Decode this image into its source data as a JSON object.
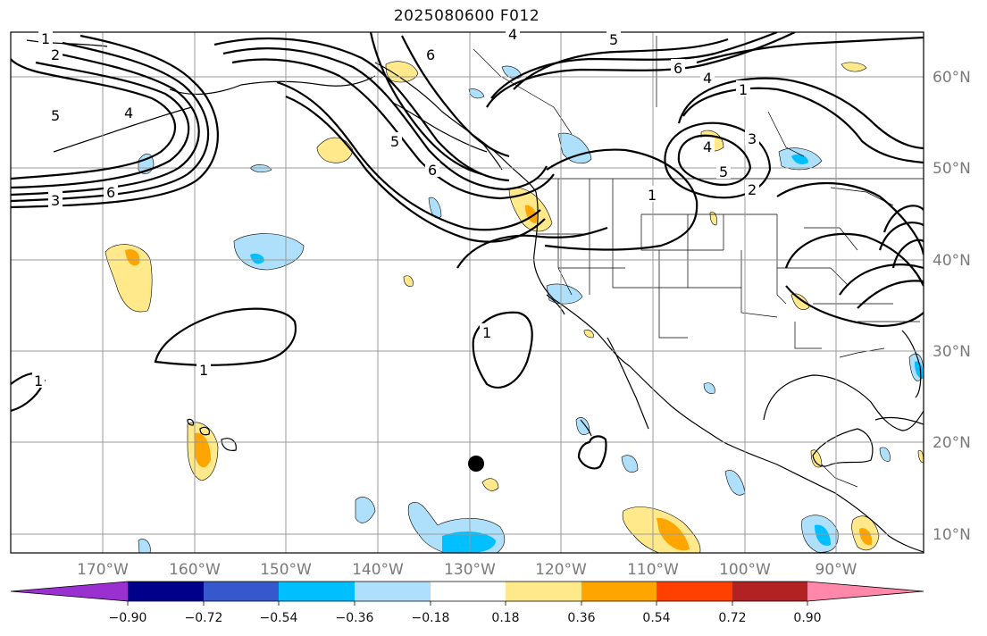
{
  "title": "2025080600 F012",
  "map": {
    "lon_labels": [
      "170°W",
      "160°W",
      "150°W",
      "140°W",
      "130°W",
      "120°W",
      "110°W",
      "100°W",
      "90°W"
    ],
    "lat_labels": [
      "60°N",
      "50°N",
      "40°N",
      "30°N",
      "20°N",
      "10°N"
    ],
    "contour_labels": [
      "1",
      "2",
      "5",
      "4",
      "3",
      "6",
      "6",
      "5",
      "6",
      "4",
      "1",
      "1",
      "1",
      "1",
      "4",
      "5",
      "2",
      "6",
      "5",
      "4",
      "3",
      "1"
    ],
    "marker": "black-dot",
    "fill_colors": {
      "neg_strong": "#00bfff",
      "neg_light": "#aee0fb",
      "pos_light": "#ffe98a",
      "pos_strong": "#ffa500"
    }
  },
  "colorbar": {
    "tick_labels": [
      "−0.90",
      "−0.72",
      "−0.54",
      "−0.36",
      "−0.18",
      "0.18",
      "0.36",
      "0.54",
      "0.72",
      "0.90"
    ],
    "colors": [
      "#9b30d0",
      "#00008b",
      "#3658cc",
      "#00bfff",
      "#aee0fb",
      "#ffffff",
      "#ffe98a",
      "#ffa500",
      "#ff4000",
      "#b22222",
      "#ff88aa"
    ]
  }
}
